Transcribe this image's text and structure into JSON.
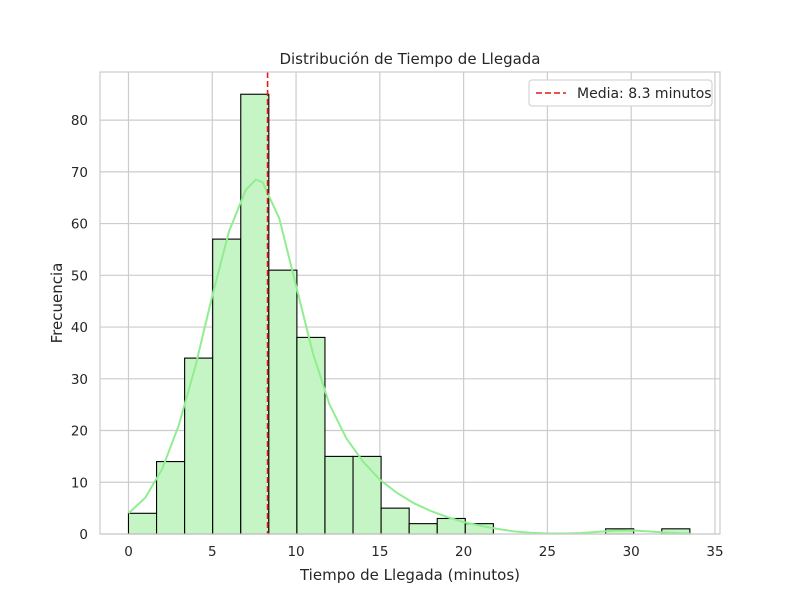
{
  "chart_data": {
    "type": "bar",
    "title": "Distribución de Tiempo de Llegada",
    "xlabel": "Tiempo de Llegada (minutos)",
    "ylabel": "Frecuencia",
    "xlim": [
      -1.7,
      35.3
    ],
    "ylim": [
      0,
      89.3
    ],
    "xticks": [
      0,
      5,
      10,
      15,
      20,
      25,
      30,
      35
    ],
    "yticks": [
      0,
      10,
      20,
      30,
      40,
      50,
      60,
      70,
      80
    ],
    "grid": true,
    "legend_position": "top-right",
    "bins": {
      "start": 0.0,
      "width": 1.675,
      "counts": [
        4,
        14,
        34,
        57,
        85,
        51,
        38,
        15,
        15,
        5,
        2,
        3,
        2,
        0,
        0,
        0,
        0,
        1,
        0,
        1
      ]
    },
    "kde": {
      "x": [
        0,
        1,
        2,
        3,
        4,
        5,
        6,
        7,
        7.6,
        8,
        9,
        10,
        11,
        12,
        13,
        14,
        15,
        16,
        17,
        18,
        19,
        20,
        21,
        22,
        23,
        24,
        25,
        26,
        27,
        28,
        29,
        30,
        31,
        32,
        33,
        33.5
      ],
      "y": [
        4,
        7,
        12.5,
        21,
        32.5,
        46,
        58.5,
        66.5,
        68.5,
        68,
        61,
        48,
        35,
        25,
        18.5,
        14,
        10.5,
        8,
        6,
        4.5,
        3.3,
        2.3,
        1.6,
        1,
        0.5,
        0.25,
        0.1,
        0.1,
        0.2,
        0.4,
        0.65,
        0.7,
        0.5,
        0.3,
        0.15,
        0.1
      ]
    },
    "mean": {
      "value": 8.3,
      "label": "Media: 8.3 minutos"
    },
    "colors": {
      "bar_fill": "#c5f5c5",
      "bar_edge": "#000000",
      "kde_line": "#90ee90",
      "mean_line": "#e41a1c",
      "grid": "#cccccc",
      "spine": "#cccccc"
    }
  }
}
